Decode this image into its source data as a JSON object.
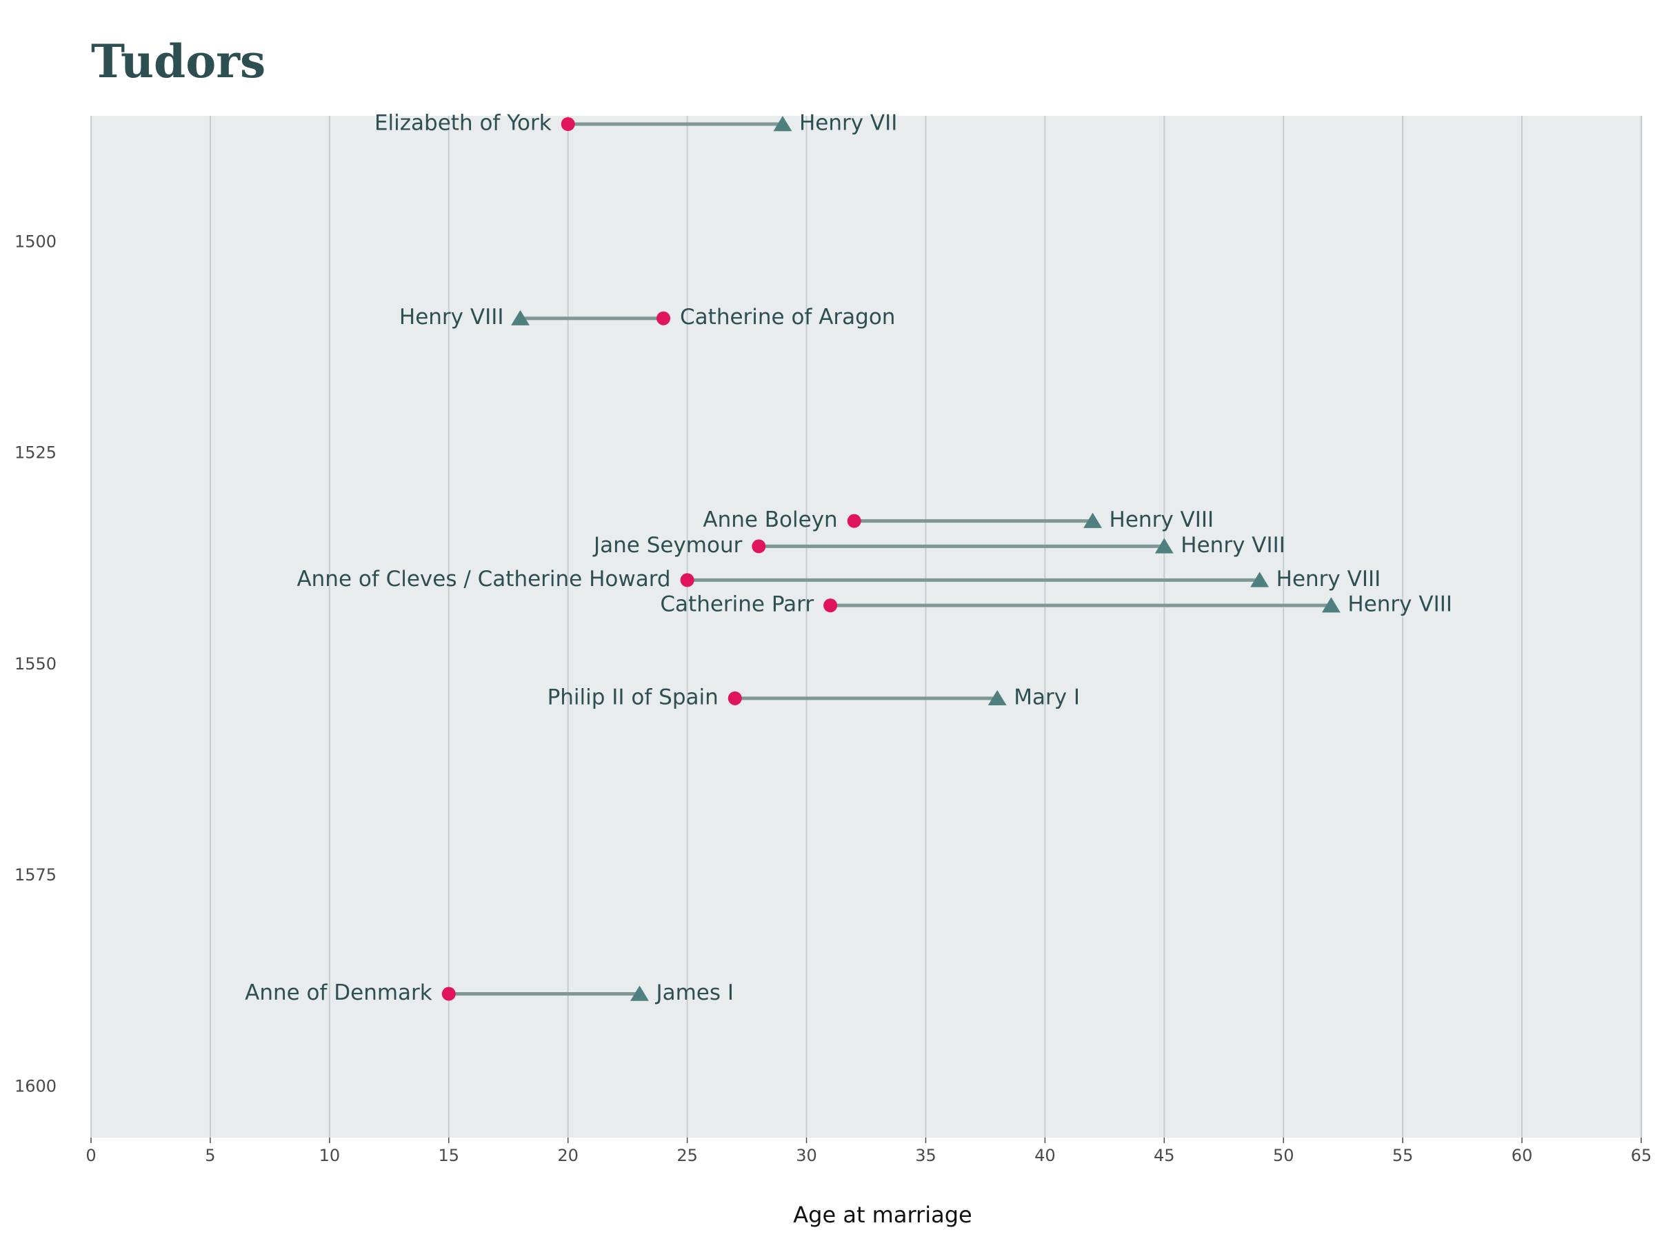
{
  "chart_data": {
    "type": "dumbbell",
    "title": "Tudors",
    "xlabel": "Age at marriage",
    "ylabel": "",
    "xlim": [
      0,
      65
    ],
    "ylim": [
      1486,
      1603
    ],
    "x_ticks": [
      "0",
      "5",
      "10",
      "15",
      "20",
      "25",
      "30",
      "35",
      "40",
      "45",
      "50",
      "55",
      "60",
      "65"
    ],
    "y_ticks": [
      "1500",
      "1525",
      "1550",
      "1575",
      "1600"
    ],
    "grid": {
      "vertical": true,
      "horizontal": false
    },
    "marker_legend": {
      "circle": "spouse",
      "triangle": "monarch"
    },
    "colors": {
      "spouse_marker": "#e0145a",
      "monarch_marker": "#4f7f7f",
      "connector": "#7f9896",
      "panel_background": "#e9eced",
      "grid": "#c6cdcf",
      "label_text": "#2d4f52",
      "title": "#2d4f52"
    },
    "marriages": [
      {
        "year": 1486,
        "spouse": "Elizabeth of York",
        "spouse_age": 20,
        "monarch": "Henry VII",
        "monarch_age": 29
      },
      {
        "year": 1509,
        "spouse": "Catherine of Aragon",
        "spouse_age": 24,
        "monarch": "Henry VIII",
        "monarch_age": 18
      },
      {
        "year": 1533,
        "spouse": "Anne Boleyn",
        "spouse_age": 32,
        "monarch": "Henry VIII",
        "monarch_age": 42
      },
      {
        "year": 1536,
        "spouse": "Jane Seymour",
        "spouse_age": 28,
        "monarch": "Henry VIII",
        "monarch_age": 45
      },
      {
        "year": 1540,
        "spouse": "Anne of Cleves / Catherine Howard",
        "spouse_age": 25,
        "monarch": "Henry VIII",
        "monarch_age": 49
      },
      {
        "year": 1543,
        "spouse": "Catherine Parr",
        "spouse_age": 31,
        "monarch": "Henry VIII",
        "monarch_age": 52
      },
      {
        "year": 1554,
        "spouse": "Philip II of Spain",
        "spouse_age": 27,
        "monarch": "Mary I",
        "monarch_age": 38
      },
      {
        "year": 1589,
        "spouse": "Anne of Denmark",
        "spouse_age": 15,
        "monarch": "James I",
        "monarch_age": 23
      }
    ]
  }
}
